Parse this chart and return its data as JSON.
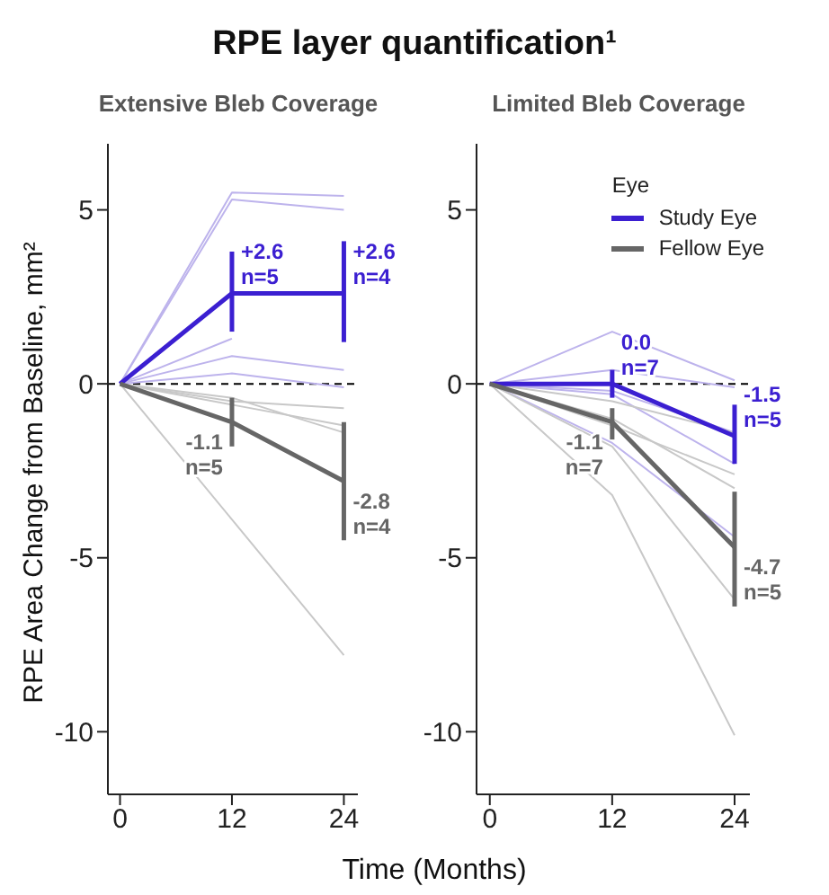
{
  "chart_data": [
    {
      "type": "line",
      "title": "RPE layer quantification¹",
      "subtitle": "Extensive Bleb Coverage",
      "xlabel": "Time (Months)",
      "ylabel": "RPE Area Change from Baseline, mm²",
      "x": [
        0,
        12,
        24
      ],
      "xlim": [
        -1.3,
        25.5
      ],
      "xticks": [
        0,
        12,
        24
      ],
      "ylim": [
        -11.8,
        6.9
      ],
      "yticks": [
        -10,
        -5,
        0,
        5
      ],
      "series": [
        {
          "color": "#bdb3ec",
          "values": [
            0,
            5.5,
            5.4
          ]
        },
        {
          "color": "#bdb3ec",
          "values": [
            0,
            5.3,
            5.0
          ]
        },
        {
          "color": "#bdb3ec",
          "values": [
            0,
            1.3,
            null
          ]
        },
        {
          "color": "#bdb3ec",
          "values": [
            0,
            0.8,
            0.4
          ]
        },
        {
          "color": "#bdb3ec",
          "values": [
            0,
            0.3,
            -0.1
          ]
        },
        {
          "color": "#c8c8c8",
          "values": [
            0,
            -0.5,
            -0.7
          ]
        },
        {
          "color": "#c8c8c8",
          "values": [
            0,
            -0.6,
            -1.2
          ]
        },
        {
          "color": "#c8c8c8",
          "values": [
            0,
            -0.4,
            -1.4
          ]
        },
        {
          "color": "#c8c8c8",
          "values": [
            0,
            -3.9,
            -7.8
          ]
        },
        {
          "color": "#3b1fd1",
          "values": [
            0,
            2.6,
            2.6
          ],
          "errors": [
            null,
            [
              1.5,
              3.8
            ],
            [
              1.2,
              4.1
            ]
          ],
          "value_labels": [
            null,
            "+2.6\nn=5",
            "+2.6\nn=4"
          ]
        },
        {
          "color": "#666666",
          "values": [
            0,
            -1.1,
            -2.8
          ],
          "errors": [
            null,
            [
              -1.8,
              -0.4
            ],
            [
              -4.5,
              -1.1
            ]
          ],
          "value_labels": [
            null,
            "-1.1\nn=5",
            "-2.8\nn=4"
          ]
        }
      ],
      "ref_lines": [
        {
          "axis": "y",
          "value": 0,
          "color": "#000000",
          "line_style": "dashed"
        }
      ]
    },
    {
      "type": "line",
      "subtitle": "Limited Bleb Coverage",
      "legend_title": "Eye",
      "legend": "top right",
      "x": [
        0,
        12,
        24
      ],
      "xlim": [
        -1.3,
        25.5
      ],
      "xticks": [
        0,
        12,
        24
      ],
      "ylim": [
        -11.8,
        6.9
      ],
      "yticks": [
        -10,
        -5,
        0,
        5
      ],
      "series": [
        {
          "color": "#bdb3ec",
          "values": [
            0,
            1.5,
            0.1
          ]
        },
        {
          "color": "#bdb3ec",
          "values": [
            0,
            0.4,
            -0.1
          ]
        },
        {
          "color": "#bdb3ec",
          "values": [
            0,
            -0.2,
            -1.4
          ]
        },
        {
          "color": "#bdb3ec",
          "values": [
            0,
            -1.7,
            -4.4
          ]
        },
        {
          "color": "#bdb3ec",
          "values": [
            0,
            -0.3,
            -2.3
          ]
        },
        {
          "color": "#c8c8c8",
          "values": [
            0,
            -1.0,
            -3.0
          ]
        },
        {
          "color": "#c8c8c8",
          "values": [
            0,
            -1.2,
            -2.6
          ]
        },
        {
          "color": "#c8c8c8",
          "values": [
            0,
            -1.8,
            -6.2
          ]
        },
        {
          "color": "#c8c8c8",
          "values": [
            0,
            -3.2,
            -10.1
          ]
        },
        {
          "color": "#c8c8c8",
          "values": [
            0,
            -0.5,
            -1.4
          ]
        },
        {
          "name": "Study Eye",
          "color": "#3b1fd1",
          "values": [
            0,
            0.0,
            -1.5
          ],
          "errors": [
            null,
            [
              -0.4,
              0.4
            ],
            [
              -2.3,
              -0.6
            ]
          ],
          "value_labels": [
            null,
            "0.0\nn=7",
            "-1.5\nn=5"
          ]
        },
        {
          "name": "Fellow Eye",
          "color": "#666666",
          "values": [
            0,
            -1.1,
            -4.7
          ],
          "errors": [
            null,
            [
              -1.6,
              -0.7
            ],
            [
              -6.4,
              -3.1
            ]
          ],
          "value_labels": [
            null,
            "-1.1\nn=7",
            "-4.7\nn=5"
          ]
        }
      ],
      "ref_lines": [
        {
          "axis": "y",
          "value": 0,
          "color": "#000000",
          "line_style": "dashed"
        }
      ]
    }
  ]
}
